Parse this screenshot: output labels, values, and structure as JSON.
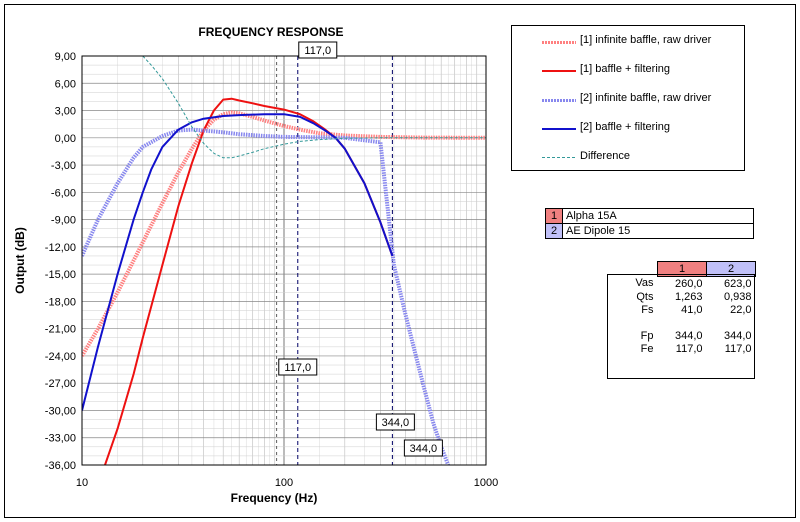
{
  "chart_data": {
    "type": "line",
    "title": "FREQUENCY RESPONSE",
    "xlabel": "Frequency (Hz)",
    "ylabel": "Output (dB)",
    "x_scale": "log",
    "xlim": [
      10,
      1000
    ],
    "ylim": [
      -36,
      9
    ],
    "x_ticks": [
      "10",
      "100",
      "1000"
    ],
    "y_ticks": [
      "9,00",
      "6,00",
      "3,00",
      "0,00",
      "-3,00",
      "-6,00",
      "-9,00",
      "-12,00",
      "-15,00",
      "-18,00",
      "-21,00",
      "-24,00",
      "-27,00",
      "-30,00",
      "-33,00",
      "-36,00"
    ],
    "grid": true,
    "legend_position": "top-right",
    "series": [
      {
        "name": "[1] infinite baffle, raw driver",
        "color": "#ff8080",
        "style": "hatched",
        "x": [
          10,
          12,
          15,
          20,
          25,
          30,
          35,
          40,
          45,
          50,
          55,
          60,
          70,
          80,
          100,
          120,
          150,
          200,
          300,
          500,
          1000
        ],
        "y": [
          -24.0,
          -21.0,
          -17.0,
          -11.5,
          -7.2,
          -3.8,
          -1.2,
          0.8,
          2.0,
          2.6,
          2.8,
          2.7,
          2.3,
          1.9,
          1.3,
          0.9,
          0.5,
          0.25,
          0.1,
          0.02,
          0.0
        ]
      },
      {
        "name": "[1] baffle + filtering",
        "color": "#ee1111",
        "style": "solid",
        "x": [
          13,
          15,
          18,
          20,
          25,
          30,
          35,
          40,
          45,
          50,
          55,
          60,
          70,
          80,
          100,
          120,
          140,
          160,
          180,
          200,
          250,
          300,
          344
        ],
        "y": [
          -36.0,
          -32.0,
          -26.0,
          -22.0,
          -14.0,
          -7.5,
          -2.8,
          0.8,
          3.0,
          4.2,
          4.3,
          4.1,
          3.8,
          3.5,
          3.1,
          2.6,
          1.8,
          0.9,
          0.0,
          -1.2,
          -5.0,
          -9.3,
          -13.0
        ]
      },
      {
        "name": "[2] infinite baffle, raw driver",
        "color": "#8888ee",
        "style": "hatched",
        "x": [
          10,
          12,
          15,
          18,
          20,
          25,
          30,
          35,
          40,
          50,
          60,
          80,
          100,
          150,
          200,
          300,
          350,
          400,
          450,
          500,
          550,
          600,
          650
        ],
        "y": [
          -13.0,
          -9.0,
          -5.0,
          -2.2,
          -1.0,
          0.2,
          0.8,
          0.9,
          0.8,
          0.6,
          0.4,
          0.2,
          0.1,
          0.05,
          0.0,
          -0.5,
          -14.0,
          -19.5,
          -24.0,
          -28.0,
          -31.5,
          -34.0,
          -36.0
        ]
      },
      {
        "name": "[2] baffle + filtering",
        "color": "#1111cc",
        "style": "solid",
        "x": [
          10,
          12,
          15,
          18,
          20,
          22,
          25,
          30,
          35,
          40,
          50,
          60,
          80,
          100,
          120,
          140,
          160,
          180,
          200,
          250,
          300,
          344
        ],
        "y": [
          -30.0,
          -23.0,
          -15.0,
          -9.0,
          -6.0,
          -3.5,
          -1.0,
          0.9,
          1.7,
          2.1,
          2.4,
          2.5,
          2.6,
          2.6,
          2.3,
          1.6,
          0.8,
          0.0,
          -1.2,
          -5.0,
          -9.3,
          -13.0
        ]
      },
      {
        "name": "Difference",
        "color": "#339999",
        "style": "dashed",
        "x": [
          20,
          22,
          25,
          30,
          35,
          40,
          45,
          50,
          55,
          60,
          70,
          80,
          100,
          120,
          150,
          200,
          300,
          500,
          1000
        ],
        "y": [
          9.0,
          8.0,
          6.5,
          3.8,
          1.2,
          -0.6,
          -1.7,
          -2.2,
          -2.2,
          -2.0,
          -1.6,
          -1.2,
          -0.7,
          -0.4,
          -0.2,
          -0.05,
          0.0,
          0.0,
          0.0
        ]
      }
    ],
    "markers": [
      {
        "x": 117,
        "label": "117,0"
      },
      {
        "x": 344,
        "label": "344,0"
      }
    ]
  },
  "drivers": [
    {
      "num": "1",
      "name": "Alpha 15A",
      "color": "#f08080"
    },
    {
      "num": "2",
      "name": "AE Dipole 15",
      "color": "#c0c0f8"
    }
  ],
  "params": {
    "header": [
      "1",
      "2"
    ],
    "header_colors": [
      "#f08080",
      "#c0c0f8"
    ],
    "rows": [
      {
        "label": "Vas",
        "v1": "260,0",
        "v2": "623,0"
      },
      {
        "label": "Qts",
        "v1": "1,263",
        "v2": "0,938"
      },
      {
        "label": "Fs",
        "v1": "41,0",
        "v2": "22,0"
      },
      {
        "label": "",
        "v1": "",
        "v2": ""
      },
      {
        "label": "Fp",
        "v1": "344,0",
        "v2": "344,0"
      },
      {
        "label": "Fe",
        "v1": "117,0",
        "v2": "117,0"
      }
    ]
  }
}
